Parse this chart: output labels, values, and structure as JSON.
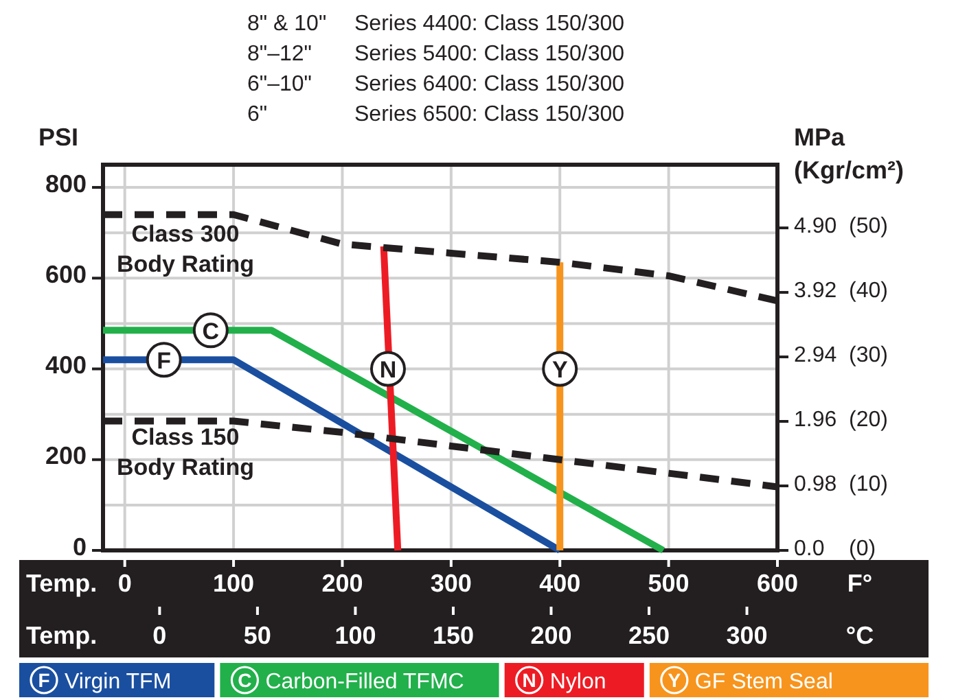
{
  "chart_data": {
    "type": "line",
    "ylabel": "PSI",
    "y2label": "MPa",
    "y3label": "(Kgr/cm²)",
    "xlabel": "Temp.\tF°",
    "x2label": "Temp.\t°C",
    "xlim": [
      -20,
      600
    ],
    "xticks": [
      0,
      100,
      200,
      300,
      400,
      500,
      600
    ],
    "x2lim": [
      -28.9,
      315.6
    ],
    "x2ticks": [
      0,
      50,
      100,
      150,
      200,
      250,
      300
    ],
    "ylim": [
      0,
      850
    ],
    "yticks": [
      0,
      {
        "value": 100,
        "label": null
      },
      200,
      {
        "value": 300,
        "label": null
      },
      400,
      {
        "value": 500,
        "label": null
      },
      600,
      {
        "value": 700,
        "label": null
      },
      800
    ],
    "y2lim": [
      0,
      5.86
    ],
    "y2ticks": [
      {
        "value": 0,
        "label": "0.0"
      },
      {
        "value": 0.98,
        "label": "0.98"
      },
      {
        "value": 1.96,
        "label": "1.96"
      },
      {
        "value": 2.94,
        "label": "2.94"
      },
      {
        "value": 3.92,
        "label": "3.92"
      },
      {
        "value": 4.9,
        "label": "4.90"
      }
    ],
    "y3lim": [
      0,
      59.8
    ],
    "y3ticks": [
      {
        "value": 0,
        "label": "(0)"
      },
      {
        "value": 10,
        "label": "(10)"
      },
      {
        "value": 20,
        "label": "(20)"
      },
      {
        "value": 30,
        "label": "(30)"
      },
      {
        "value": 40,
        "label": "(40)"
      },
      {
        "value": 50,
        "label": "(50)"
      }
    ],
    "grid": true,
    "legend": "bottom",
    "marker": "none",
    "series": [
      {
        "name": "Virgin TFM",
        "color": "#1a4fa0",
        "x": [
          -20,
          100,
          400
        ],
        "values": [
          420,
          420,
          0
        ]
      },
      {
        "name": "Carbon-Filled TFMC",
        "color": "#22b04b",
        "x": [
          -20,
          135,
          495
        ],
        "values": [
          485,
          485,
          0
        ]
      },
      {
        "name": "Nylon",
        "color": "#ed1c24",
        "x": [
          238,
          251
        ],
        "values": [
          670,
          0
        ]
      },
      {
        "name": "GF Stem Seal",
        "color": "#f7941d",
        "x": [
          400,
          400
        ],
        "values": [
          635,
          0
        ]
      },
      {
        "color": "#231f20",
        "line_style": "dashed",
        "x": [
          -20,
          100,
          200,
          300,
          400,
          500,
          600
        ],
        "values": [
          740,
          740,
          675,
          655,
          635,
          605,
          550
        ]
      },
      {
        "color": "#231f20",
        "line_style": "dashed",
        "x": [
          -20,
          100,
          200,
          300,
          400,
          500,
          600
        ],
        "values": [
          285,
          285,
          260,
          230,
          200,
          170,
          140
        ]
      }
    ],
    "annotations": [
      {
        "text": "F",
        "x": 36,
        "y": 420
      },
      {
        "text": "C",
        "x": 79,
        "y": 485
      },
      {
        "text": "N",
        "x": 242,
        "y": 400
      },
      {
        "text": "Y",
        "x": 400,
        "y": 400
      },
      "Class 300\nBody Rating",
      "Class 150\nBody Rating",
      "8\" & 10\"\tSeries 4400: Class 150/300",
      "8\"–12\"\tSeries 5400: Class 150/300",
      "6\"–10\"\tSeries 6400: Class 150/300",
      "6\"\tSeries 6500: Class 150/300"
    ]
  }
}
